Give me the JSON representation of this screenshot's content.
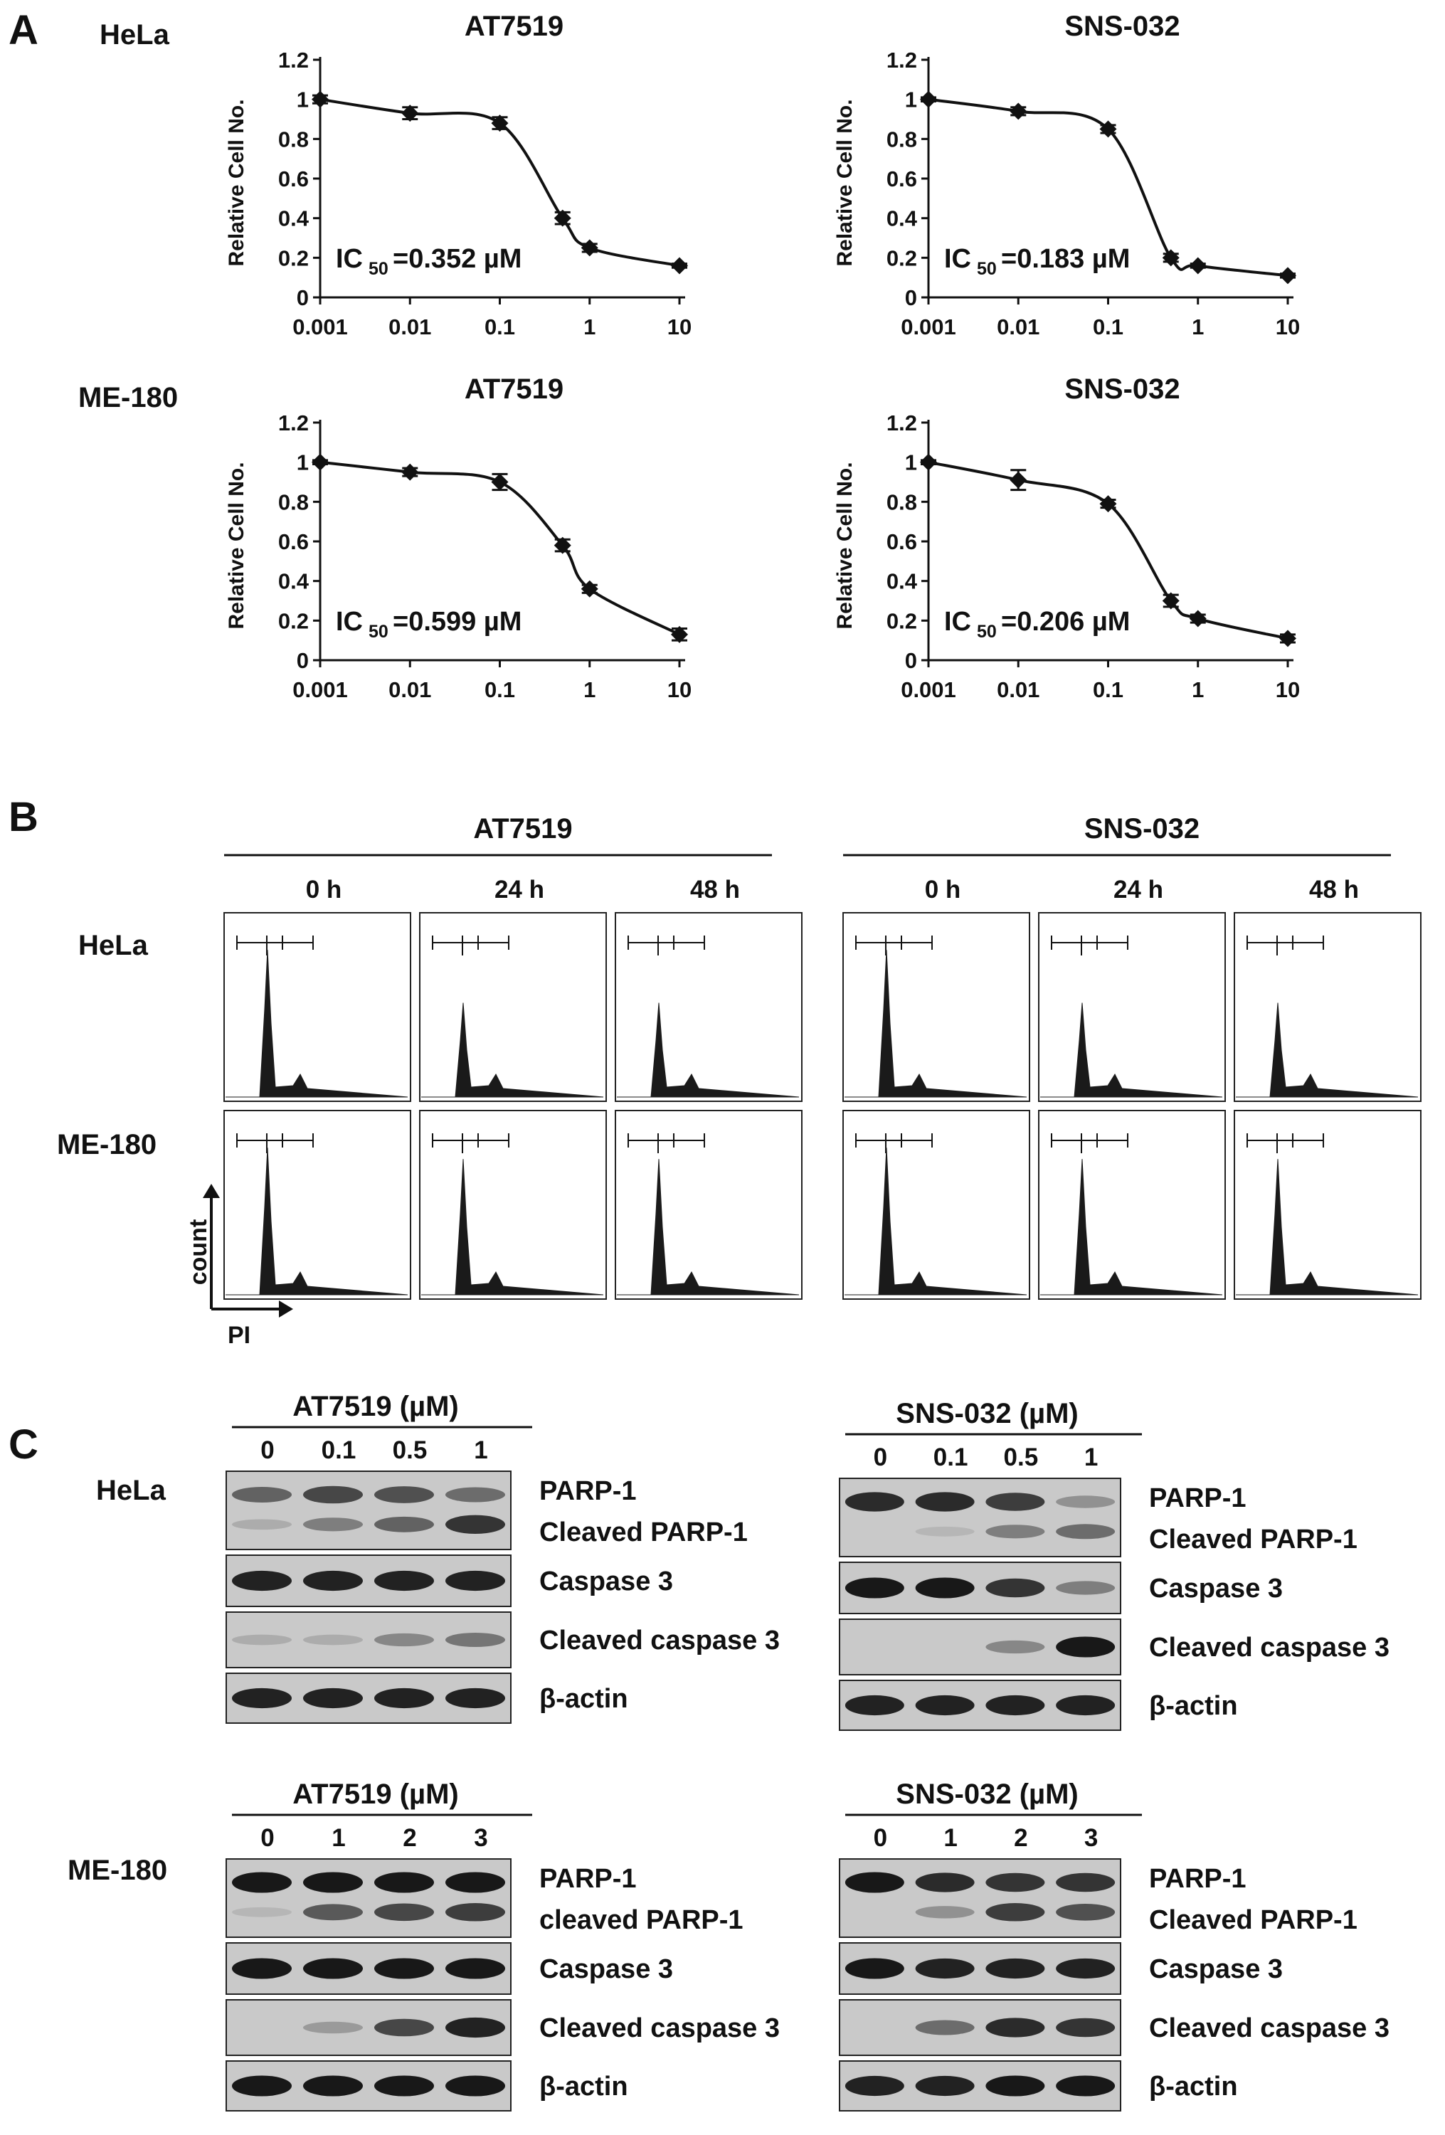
{
  "panel_letters": [
    "A",
    "B",
    "C"
  ],
  "cell_lines": [
    "HeLa",
    "ME-180"
  ],
  "drugs": [
    "AT7519",
    "SNS-032"
  ],
  "chart_data": [
    {
      "type": "line",
      "cell_line": "HeLa",
      "title": "AT7519",
      "ylabel": "Relative Cell No.",
      "xlabel": "",
      "x": [
        0.001,
        0.01,
        0.1,
        0.5,
        1,
        10
      ],
      "y": [
        1.0,
        0.93,
        0.88,
        0.4,
        0.25,
        0.16
      ],
      "err": [
        0.02,
        0.03,
        0.03,
        0.03,
        0.02,
        0.01
      ],
      "xscale": "log",
      "xticks": [
        "0.001",
        "0.01",
        "0.1",
        "1",
        "10"
      ],
      "yticks": [
        "0",
        "0.2",
        "0.4",
        "0.6",
        "0.8",
        "1",
        "1.2"
      ],
      "ylim": [
        0,
        1.2
      ],
      "annotation_main": "IC",
      "annotation_sub": "50",
      "annotation_value": "=0.352 µM"
    },
    {
      "type": "line",
      "cell_line": "HeLa",
      "title": "SNS-032",
      "ylabel": "Relative Cell No.",
      "xlabel": "",
      "x": [
        0.001,
        0.01,
        0.1,
        0.5,
        1,
        10
      ],
      "y": [
        1.0,
        0.94,
        0.85,
        0.2,
        0.16,
        0.11
      ],
      "err": [
        0.01,
        0.02,
        0.02,
        0.02,
        0.01,
        0.01
      ],
      "xscale": "log",
      "xticks": [
        "0.001",
        "0.01",
        "0.1",
        "1",
        "10"
      ],
      "yticks": [
        "0",
        "0.2",
        "0.4",
        "0.6",
        "0.8",
        "1",
        "1.2"
      ],
      "ylim": [
        0,
        1.2
      ],
      "annotation_main": "IC",
      "annotation_sub": "50",
      "annotation_value": "=0.183 µM"
    },
    {
      "type": "line",
      "cell_line": "ME-180",
      "title": "AT7519",
      "ylabel": "Relative Cell No.",
      "xlabel": "",
      "x": [
        0.001,
        0.01,
        0.1,
        0.5,
        1,
        10
      ],
      "y": [
        1.0,
        0.95,
        0.9,
        0.58,
        0.36,
        0.13
      ],
      "err": [
        0.01,
        0.02,
        0.04,
        0.03,
        0.02,
        0.03
      ],
      "xscale": "log",
      "xticks": [
        "0.001",
        "0.01",
        "0.1",
        "1",
        "10"
      ],
      "yticks": [
        "0",
        "0.2",
        "0.4",
        "0.6",
        "0.8",
        "1",
        "1.2"
      ],
      "ylim": [
        0,
        1.2
      ],
      "annotation_main": "IC",
      "annotation_sub": "50",
      "annotation_value": "=0.599 µM"
    },
    {
      "type": "line",
      "cell_line": "ME-180",
      "title": "SNS-032",
      "ylabel": "Relative Cell No.",
      "xlabel": "",
      "x": [
        0.001,
        0.01,
        0.1,
        0.5,
        1,
        10
      ],
      "y": [
        1.0,
        0.91,
        0.79,
        0.3,
        0.21,
        0.11
      ],
      "err": [
        0.01,
        0.05,
        0.02,
        0.03,
        0.02,
        0.02
      ],
      "xscale": "log",
      "xticks": [
        "0.001",
        "0.01",
        "0.1",
        "1",
        "10"
      ],
      "yticks": [
        "0",
        "0.2",
        "0.4",
        "0.6",
        "0.8",
        "1",
        "1.2"
      ],
      "ylim": [
        0,
        1.2
      ],
      "annotation_main": "IC",
      "annotation_sub": "50",
      "annotation_value": "=0.206 µM"
    }
  ],
  "flow": {
    "timepoints": [
      "0 h",
      "24 h",
      "48 h"
    ],
    "axis_y": "count",
    "axis_x": "PI",
    "heights": [
      [
        [
          0.8,
          0.73,
          0.7
        ],
        [
          0.8,
          0.73,
          0.7
        ]
      ],
      [
        [
          0.5,
          0.5,
          0.46
        ],
        [
          0.5,
          0.5,
          0.46
        ]
      ]
    ]
  },
  "western": {
    "blocks": [
      {
        "cell_line": "HeLa",
        "drug_header": "AT7519 (µM)",
        "lanes": [
          "0",
          "0.1",
          "0.5",
          "1"
        ],
        "bands": [
          {
            "labels": [
              "PARP-1",
              "Cleaved PARP-1"
            ],
            "rows": [
              [
                0.55,
                0.7,
                0.65,
                0.5
              ],
              [
                0.15,
                0.4,
                0.55,
                0.8
              ]
            ]
          },
          {
            "labels": [
              "Caspase 3"
            ],
            "rows": [
              [
                0.9,
                0.9,
                0.9,
                0.9
              ]
            ]
          },
          {
            "labels": [
              "Cleaved  caspase 3"
            ],
            "rows": [
              [
                0.15,
                0.15,
                0.35,
                0.45
              ]
            ]
          },
          {
            "labels": [
              "β-actin"
            ],
            "rows": [
              [
                0.9,
                0.9,
                0.9,
                0.9
              ]
            ]
          }
        ]
      },
      {
        "cell_line": "",
        "drug_header": "SNS-032 (µM)",
        "lanes": [
          "0",
          "0.1",
          "0.5",
          "1"
        ],
        "bands": [
          {
            "labels": [
              "PARP-1",
              "Cleaved PARP-1"
            ],
            "rows": [
              [
                0.85,
                0.85,
                0.75,
                0.3
              ],
              [
                0.0,
                0.1,
                0.4,
                0.5
              ]
            ]
          },
          {
            "labels": [
              "Caspase 3"
            ],
            "rows": [
              [
                0.95,
                0.95,
                0.8,
                0.4
              ]
            ]
          },
          {
            "labels": [
              "Cleaved  caspase 3"
            ],
            "rows": [
              [
                0.0,
                0.0,
                0.35,
                0.95
              ]
            ]
          },
          {
            "labels": [
              "β-actin"
            ],
            "rows": [
              [
                0.9,
                0.9,
                0.9,
                0.9
              ]
            ]
          }
        ]
      },
      {
        "cell_line": "ME-180",
        "drug_header": "AT7519 (µM)",
        "lanes": [
          "0",
          "1",
          "2",
          "3"
        ],
        "bands": [
          {
            "labels": [
              "PARP-1",
              "cleaved PARP-1"
            ],
            "rows": [
              [
                0.95,
                0.95,
                0.95,
                0.95
              ],
              [
                0.1,
                0.6,
                0.7,
                0.75
              ]
            ]
          },
          {
            "labels": [
              "Caspase 3"
            ],
            "rows": [
              [
                0.95,
                0.95,
                0.95,
                0.95
              ]
            ]
          },
          {
            "labels": [
              "Cleaved  caspase 3"
            ],
            "rows": [
              [
                0.0,
                0.25,
                0.7,
                0.9
              ]
            ]
          },
          {
            "labels": [
              "β-actin"
            ],
            "rows": [
              [
                0.95,
                0.95,
                0.95,
                0.95
              ]
            ]
          }
        ]
      },
      {
        "cell_line": "",
        "drug_header": "SNS-032 (µM)",
        "lanes": [
          "0",
          "1",
          "2",
          "3"
        ],
        "bands": [
          {
            "labels": [
              "PARP-1",
              "Cleaved PARP-1"
            ],
            "rows": [
              [
                0.95,
                0.85,
                0.8,
                0.8
              ],
              [
                0.0,
                0.3,
                0.75,
                0.65
              ]
            ]
          },
          {
            "labels": [
              "Caspase 3"
            ],
            "rows": [
              [
                0.95,
                0.9,
                0.9,
                0.9
              ]
            ]
          },
          {
            "labels": [
              "Cleaved  caspase 3"
            ],
            "rows": [
              [
                0.0,
                0.5,
                0.85,
                0.8
              ]
            ]
          },
          {
            "labels": [
              "β-actin"
            ],
            "rows": [
              [
                0.9,
                0.9,
                0.95,
                0.95
              ]
            ]
          }
        ]
      }
    ]
  }
}
